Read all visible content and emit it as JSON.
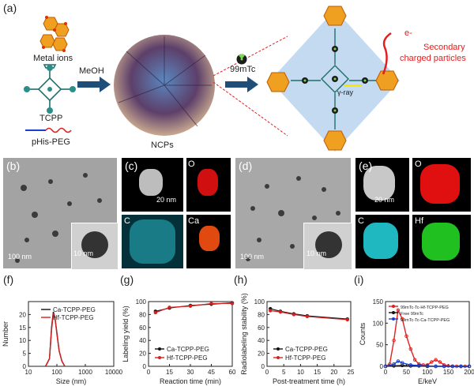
{
  "colors": {
    "accent_red": "#e02020",
    "arrow_blue": "#1f4e79",
    "hf_line": "#d62020",
    "ca_line": "#111111",
    "blue_line": "#1a3fd0"
  },
  "panels": {
    "a": "(a)",
    "b": "(b)",
    "c": "(c)",
    "d": "(d)",
    "e": "(e)",
    "f": "(f)",
    "g": "(g)",
    "h": "(h)",
    "i": "(i)"
  },
  "schematic": {
    "metal_ions": "Metal ions",
    "tcpp": "TCPP",
    "phis_peg": "pHis-PEG",
    "meoh": "MeOH",
    "ncps": "NCPs",
    "tc_label": "99mTc",
    "electron": "e-",
    "secondary": "Secondary",
    "charged": "charged particles",
    "gamma": "γ-ray"
  },
  "micro": {
    "b_scale": "100 nm",
    "b_inset_scale": "10 nm",
    "c_scale": "20 nm",
    "c_o": "O",
    "c_c": "C",
    "c_ca": "Ca",
    "d_scale": "100 nm",
    "d_inset_scale": "10 nm",
    "e_scale": "20 nm",
    "e_o": "O",
    "e_c": "C",
    "e_hf": "Hf"
  },
  "chart_data": [
    {
      "panel": "f",
      "type": "line",
      "xlabel": "Size (nm)",
      "ylabel": "Number",
      "xscale": "log",
      "xlim": [
        10,
        10000
      ],
      "ylim": [
        0,
        25
      ],
      "xticks": [
        "10",
        "100",
        "1000",
        "10000"
      ],
      "yticks": [
        "0",
        "5",
        "10",
        "15",
        "20"
      ],
      "series": [
        {
          "name": "Ca-TCPP-PEG",
          "color": "#111111",
          "x": [
            40,
            55,
            65,
            75,
            85,
            100,
            120,
            150,
            190
          ],
          "y": [
            0,
            3,
            15,
            21,
            19,
            13,
            6,
            2,
            0
          ]
        },
        {
          "name": "Hf-TCPP-PEG",
          "color": "#d62020",
          "x": [
            40,
            55,
            65,
            75,
            85,
            100,
            120,
            150,
            190
          ],
          "y": [
            0,
            3,
            14,
            20.5,
            19,
            12.5,
            6,
            2,
            0
          ]
        }
      ]
    },
    {
      "panel": "g",
      "type": "line",
      "xlabel": "Reaction time (min)",
      "ylabel": "Labeling yield (%)",
      "xlim": [
        0,
        60
      ],
      "ylim": [
        0,
        100
      ],
      "xticks": [
        "0",
        "15",
        "30",
        "45",
        "60"
      ],
      "yticks": [
        "0",
        "20",
        "40",
        "60",
        "80",
        "100"
      ],
      "series": [
        {
          "name": "Ca-TCPP-PEG",
          "color": "#111111",
          "x": [
            5,
            15,
            30,
            45,
            60
          ],
          "y": [
            85,
            90,
            94,
            96,
            98
          ]
        },
        {
          "name": "Hf-TCPP-PEG",
          "color": "#d62020",
          "x": [
            5,
            15,
            30,
            45,
            60
          ],
          "y": [
            83,
            91,
            93,
            97,
            97
          ]
        }
      ]
    },
    {
      "panel": "h",
      "type": "line",
      "xlabel": "Post-treatment time (h)",
      "ylabel": "Radiolabeling stability (%)",
      "xlim": [
        0,
        25
      ],
      "ylim": [
        0,
        100
      ],
      "xticks": [
        "0",
        "5",
        "10",
        "15",
        "20",
        "25"
      ],
      "yticks": [
        "0",
        "20",
        "40",
        "60",
        "80",
        "100"
      ],
      "series": [
        {
          "name": "Ca-TCPP-PEG",
          "color": "#111111",
          "x": [
            1,
            4,
            8,
            12,
            24
          ],
          "y": [
            89,
            85,
            81,
            78,
            73
          ]
        },
        {
          "name": "Hf-TCPP-PEG",
          "color": "#d62020",
          "x": [
            1,
            4,
            8,
            12,
            24
          ],
          "y": [
            86,
            84,
            80,
            77,
            72
          ]
        }
      ]
    },
    {
      "panel": "i",
      "type": "line",
      "xlabel": "E/keV",
      "ylabel": "Counts",
      "xlim": [
        0,
        200
      ],
      "ylim": [
        0,
        150
      ],
      "xticks": [
        "0",
        "50",
        "100",
        "150",
        "200"
      ],
      "yticks": [
        "0",
        "50",
        "100",
        "150"
      ],
      "series": [
        {
          "name": "99mTc-Tc-Hf-TCPP-PEG",
          "color": "#e02020",
          "x": [
            0,
            10,
            20,
            30,
            40,
            50,
            60,
            70,
            80,
            90,
            100,
            110,
            120,
            130,
            140,
            150,
            160,
            170,
            180,
            190,
            200
          ],
          "y": [
            0,
            5,
            60,
            130,
            110,
            70,
            40,
            15,
            5,
            3,
            3,
            10,
            15,
            10,
            3,
            1,
            0,
            0,
            0,
            0,
            0
          ]
        },
        {
          "name": "Free 99mTc",
          "color": "#111111",
          "x": [
            0,
            20,
            40,
            60,
            80,
            100,
            120,
            140,
            160,
            180,
            200
          ],
          "y": [
            0,
            1,
            2,
            1,
            1,
            0,
            0,
            0,
            0,
            0,
            0
          ]
        },
        {
          "name": "99mTc-Tc-Ca-TCPP-PEG",
          "color": "#1a3fd0",
          "x": [
            0,
            20,
            30,
            40,
            60,
            80,
            100,
            120,
            140,
            160,
            180,
            200
          ],
          "y": [
            0,
            5,
            12,
            8,
            3,
            2,
            1,
            0,
            0,
            0,
            0,
            0
          ]
        }
      ]
    }
  ]
}
